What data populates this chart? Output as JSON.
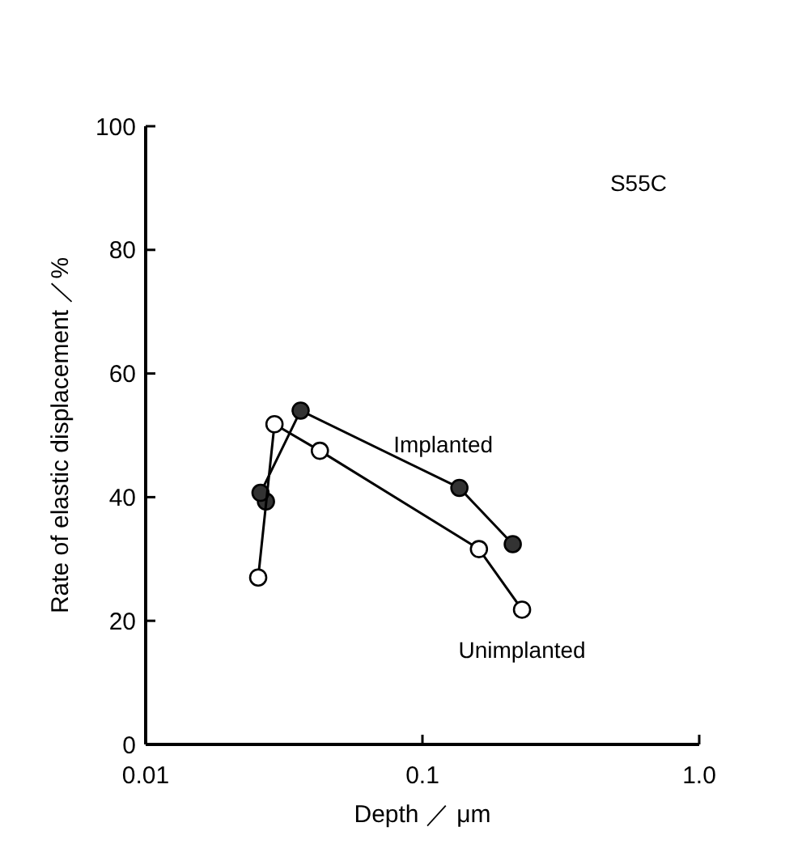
{
  "chart_data": {
    "type": "line",
    "xlabel": "Depth ／ μm",
    "ylabel": "Rate of elastic displacement ／%",
    "annotations": [
      "S55C"
    ],
    "log": "x",
    "xlim": [
      0.01,
      1.0
    ],
    "xticks": [
      0.01,
      0.1,
      {
        "value": 1.0,
        "label": "1.0"
      }
    ],
    "ylim": [
      0,
      100
    ],
    "yticks": [
      0,
      20,
      40,
      60,
      80,
      100
    ],
    "grid": false,
    "marker": "circle",
    "line_style": "solid",
    "series": [
      {
        "name": "Implanted",
        "color": "#333333",
        "x": [
          0.0272,
          0.026,
          0.0363,
          0.136,
          0.212
        ],
        "values": [
          39.3,
          40.7,
          54.0,
          41.5,
          32.4
        ]
      },
      {
        "name": "Unimplanted",
        "color": "#ffffff",
        "x": [
          0.0255,
          0.0292,
          0.0426,
          0.16,
          0.229
        ],
        "values": [
          27.0,
          51.8,
          47.5,
          31.6,
          21.8
        ]
      }
    ]
  }
}
